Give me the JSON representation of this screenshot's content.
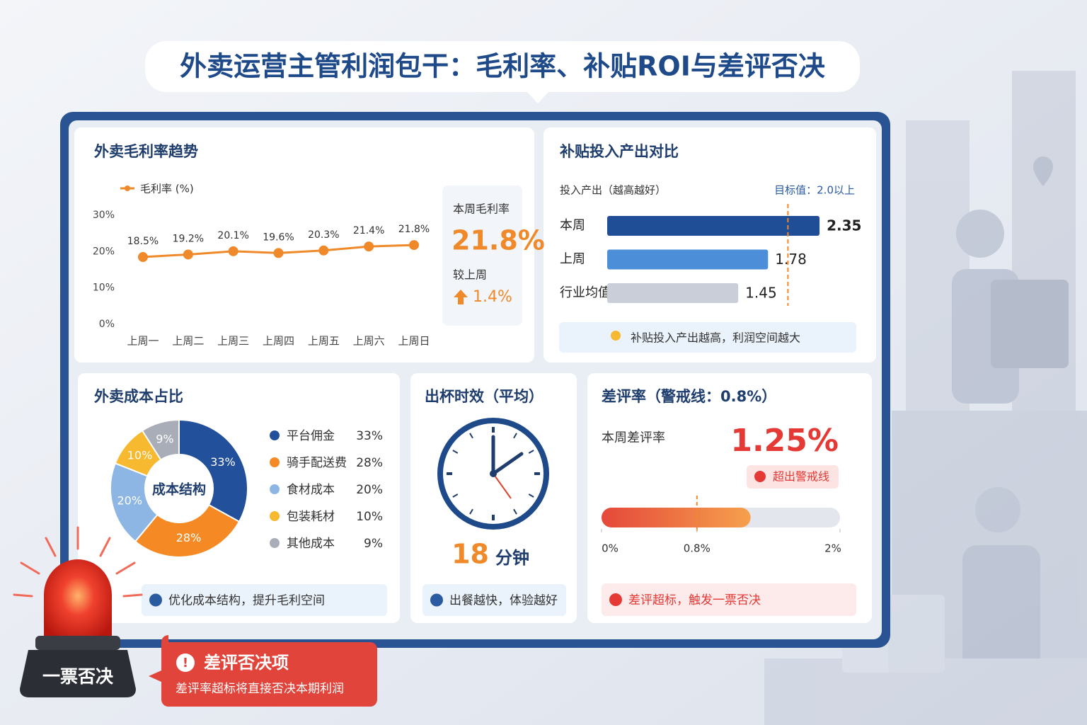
{
  "title": "外卖运营主管利润包干：毛利率、补贴ROI与差评否决",
  "chart_data": [
    {
      "type": "line",
      "title": "外卖毛利率趋势",
      "categories": [
        "上周一",
        "上周二",
        "上周三",
        "上周四",
        "上周五",
        "上周六",
        "上周日"
      ],
      "series": [
        {
          "name": "毛利率 (%)",
          "color": "#f0892a",
          "values": [
            18.5,
            19.2,
            20.1,
            19.6,
            20.3,
            21.4,
            21.8
          ],
          "value_labels": [
            "18.5%",
            "19.2%",
            "20.1%",
            "19.6%",
            "20.3%",
            "21.4%",
            "21.8%"
          ]
        }
      ],
      "ylim": [
        0,
        30
      ],
      "yticks": [
        {
          "value": 0,
          "label": "0%"
        },
        {
          "value": 10,
          "label": "10%"
        },
        {
          "value": 20,
          "label": "20%"
        },
        {
          "value": 30,
          "label": "30%"
        }
      ],
      "grid": false,
      "kpi": {
        "label": "本周毛利率",
        "value_label": "21.8%",
        "change_label": "较上周",
        "change": "1.4%"
      }
    },
    {
      "type": "hbar",
      "title": "补贴投入产出对比",
      "subtitle": "投入产出（越高越好）",
      "target_label": "目标值：2.0以上",
      "target": 2.0,
      "categories": [
        "本周",
        "上周",
        "行业均值"
      ],
      "values": [
        2.35,
        1.78,
        1.45
      ],
      "colors": [
        "#1f4e96",
        "#4d8ed8",
        "#c9ced8"
      ],
      "xlim": [
        0,
        2.6
      ],
      "note": "补贴投入产出越高，利润空间越大"
    },
    {
      "type": "donut",
      "title": "外卖成本占比",
      "center_label": "成本结构",
      "categories": [
        "平台佣金",
        "骑手配送费",
        "食材成本",
        "包装耗材",
        "其他成本"
      ],
      "values": [
        33,
        28,
        20,
        10,
        9
      ],
      "value_labels": [
        "33%",
        "28%",
        "20%",
        "10%",
        "9%"
      ],
      "colors": [
        "#22509a",
        "#f58a25",
        "#8db6e4",
        "#f6b92f",
        "#a9adb7"
      ],
      "note": "优化成本结构，提升毛利空间"
    },
    {
      "type": "kpi",
      "title": "出杯时效（平均）",
      "value": 18,
      "unit": "分钟",
      "note": "出餐越快，体验越好"
    },
    {
      "type": "progress",
      "title": "差评率（警戒线：0.8%）",
      "label": "本周差评率",
      "value": 1.25,
      "value_label": "1.25%",
      "badge": "超出警戒线",
      "threshold": 0.8,
      "xlim": [
        0,
        2
      ],
      "xticks": [
        {
          "value": 0,
          "label": "0%"
        },
        {
          "value": 0.8,
          "label": "0.8%"
        },
        {
          "value": 2,
          "label": "2%"
        }
      ],
      "note": "差评超标，触发一票否决"
    }
  ],
  "alert": {
    "badge": "一票否决",
    "title": "差评否决项",
    "text": "差评率超标将直接否决本期利润"
  }
}
